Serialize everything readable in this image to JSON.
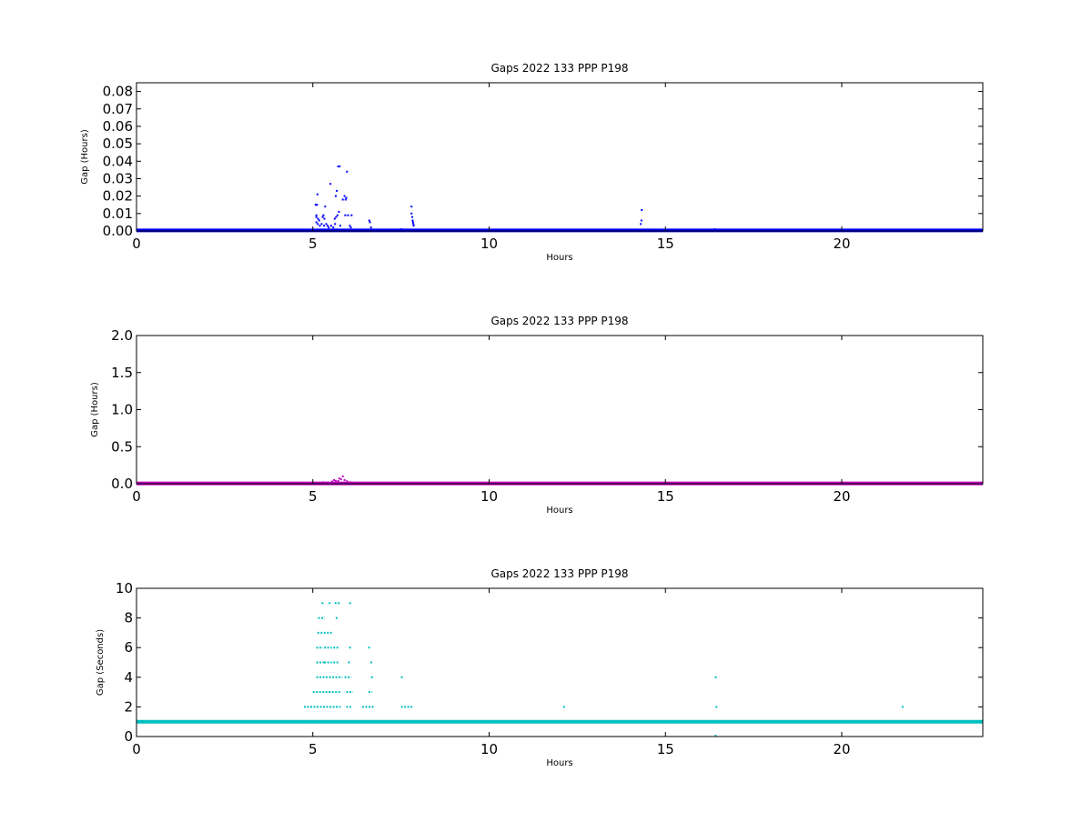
{
  "figure": {
    "background": "#ffffff"
  },
  "chart_data": [
    {
      "type": "scatter",
      "title": "Gaps 2022 133 PPP  P198",
      "xlabel": "Hours",
      "ylabel": "Gap (Hours)",
      "xlim": [
        0,
        24
      ],
      "ylim": [
        0,
        0.085
      ],
      "xticks": [
        0,
        5,
        10,
        15,
        20
      ],
      "xtick_labels": [
        "0",
        "5",
        "10",
        "15",
        "20"
      ],
      "yticks": [
        0,
        0.01,
        0.02,
        0.03,
        0.04,
        0.05,
        0.06,
        0.07,
        0.08
      ],
      "ytick_labels": [
        "0.00",
        "0.01",
        "0.02",
        "0.03",
        "0.04",
        "0.05",
        "0.06",
        "0.07",
        "0.08"
      ],
      "grid": false,
      "color": "#0000ff",
      "baseline": {
        "x_range": [
          0,
          24
        ],
        "y": 0.0003
      },
      "points": [
        [
          5.08,
          0.015
        ],
        [
          5.12,
          0.015
        ],
        [
          5.13,
          0.021
        ],
        [
          5.1,
          0.009
        ],
        [
          5.1,
          0.008
        ],
        [
          5.15,
          0.007
        ],
        [
          5.1,
          0.005
        ],
        [
          5.14,
          0.004
        ],
        [
          5.18,
          0.006
        ],
        [
          5.2,
          0.003
        ],
        [
          5.25,
          0.004
        ],
        [
          5.28,
          0.008
        ],
        [
          5.3,
          0.009
        ],
        [
          5.33,
          0.007
        ],
        [
          5.35,
          0.014
        ],
        [
          5.32,
          0.003
        ],
        [
          5.38,
          0.004
        ],
        [
          5.42,
          0.003
        ],
        [
          5.45,
          0.002
        ],
        [
          5.5,
          0.027
        ],
        [
          5.52,
          0.003
        ],
        [
          5.58,
          0.002
        ],
        [
          5.63,
          0.004
        ],
        [
          5.65,
          0.02
        ],
        [
          5.68,
          0.023
        ],
        [
          5.66,
          0.008
        ],
        [
          5.7,
          0.009
        ],
        [
          5.72,
          0.037
        ],
        [
          5.76,
          0.037
        ],
        [
          5.74,
          0.011
        ],
        [
          5.62,
          0.007
        ],
        [
          5.78,
          0.003
        ],
        [
          5.85,
          0.018
        ],
        [
          5.9,
          0.02
        ],
        [
          5.93,
          0.018
        ],
        [
          5.95,
          0.019
        ],
        [
          5.97,
          0.034
        ],
        [
          5.92,
          0.009
        ],
        [
          6.0,
          0.009
        ],
        [
          6.05,
          0.003
        ],
        [
          6.1,
          0.009
        ],
        [
          6.08,
          0.002
        ],
        [
          6.6,
          0.006
        ],
        [
          6.62,
          0.005
        ],
        [
          6.65,
          0.002
        ],
        [
          7.5,
          0.001
        ],
        [
          7.8,
          0.014
        ],
        [
          7.8,
          0.01
        ],
        [
          7.82,
          0.008
        ],
        [
          7.83,
          0.006
        ],
        [
          7.84,
          0.005
        ],
        [
          7.85,
          0.004
        ],
        [
          7.86,
          0.003
        ],
        [
          14.33,
          0.012
        ],
        [
          14.32,
          0.006
        ],
        [
          14.3,
          0.004
        ],
        [
          16.4,
          0.001
        ]
      ]
    },
    {
      "type": "scatter",
      "title": "Gaps 2022 133 PPP  P198",
      "xlabel": "Hours",
      "ylabel": "Gap (Hours)",
      "xlim": [
        0,
        24
      ],
      "ylim": [
        0,
        2.0
      ],
      "xticks": [
        0,
        5,
        10,
        15,
        20
      ],
      "xtick_labels": [
        "0",
        "5",
        "10",
        "15",
        "20"
      ],
      "yticks": [
        0,
        0.5,
        1.0,
        1.5,
        2.0
      ],
      "ytick_labels": [
        "0.0",
        "0.5",
        "1.0",
        "1.5",
        "2.0"
      ],
      "grid": false,
      "color": "#bf00bf",
      "baseline": {
        "x_range": [
          0,
          24
        ],
        "y": 0.005
      },
      "points": [
        [
          5.3,
          0.02
        ],
        [
          5.45,
          0.015
        ],
        [
          5.55,
          0.03
        ],
        [
          5.6,
          0.05
        ],
        [
          5.65,
          0.04
        ],
        [
          5.72,
          0.037
        ],
        [
          5.8,
          0.06
        ],
        [
          5.85,
          0.1
        ],
        [
          5.9,
          0.05
        ],
        [
          5.97,
          0.034
        ],
        [
          6.05,
          0.02
        ],
        [
          6.1,
          0.015
        ],
        [
          5.7,
          0.02
        ],
        [
          5.75,
          0.07
        ]
      ]
    },
    {
      "type": "scatter",
      "title": "Gaps 2022 133 PPP  P198",
      "xlabel": "Hours",
      "ylabel": "Gap (Seconds)",
      "xlim": [
        0,
        24
      ],
      "ylim": [
        0,
        10
      ],
      "xticks": [
        0,
        5,
        10,
        15,
        20
      ],
      "xtick_labels": [
        "0",
        "5",
        "10",
        "15",
        "20"
      ],
      "yticks": [
        0,
        2,
        4,
        6,
        8,
        10
      ],
      "ytick_labels": [
        "0",
        "2",
        "4",
        "6",
        "8",
        "10"
      ],
      "grid": false,
      "color": "#00bfbf",
      "baseline": {
        "x_range": [
          0,
          24
        ],
        "y": 1
      },
      "row_segments": [
        [
          5.25,
          5.3,
          9
        ],
        [
          5.45,
          5.47,
          9
        ],
        [
          5.62,
          5.75,
          9
        ],
        [
          6.03,
          6.05,
          9
        ],
        [
          5.15,
          5.3,
          8
        ],
        [
          5.65,
          5.67,
          8
        ],
        [
          5.13,
          5.5,
          7
        ],
        [
          5.1,
          5.25,
          6
        ],
        [
          5.32,
          5.5,
          6
        ],
        [
          5.58,
          5.72,
          6
        ],
        [
          6.03,
          6.05,
          6
        ],
        [
          6.57,
          6.6,
          6
        ],
        [
          5.1,
          5.3,
          5
        ],
        [
          5.32,
          5.5,
          5
        ],
        [
          5.58,
          5.72,
          5
        ],
        [
          6.0,
          6.05,
          5
        ],
        [
          6.63,
          6.67,
          5
        ],
        [
          5.1,
          5.5,
          4
        ],
        [
          5.55,
          5.8,
          4
        ],
        [
          5.9,
          6.05,
          4
        ],
        [
          6.65,
          6.68,
          4
        ],
        [
          7.5,
          7.52,
          4
        ],
        [
          16.4,
          16.42,
          4
        ],
        [
          5.0,
          5.45,
          3
        ],
        [
          5.45,
          5.75,
          3
        ],
        [
          5.95,
          6.1,
          3
        ],
        [
          6.58,
          6.65,
          3
        ],
        [
          4.75,
          5.75,
          2
        ],
        [
          5.95,
          6.05,
          2
        ],
        [
          6.4,
          6.7,
          2
        ],
        [
          7.5,
          7.8,
          2
        ],
        [
          12.1,
          12.12,
          2
        ],
        [
          16.42,
          16.44,
          2
        ],
        [
          21.7,
          21.72,
          2
        ]
      ],
      "points": [
        [
          16.42,
          0.05
        ]
      ]
    }
  ]
}
